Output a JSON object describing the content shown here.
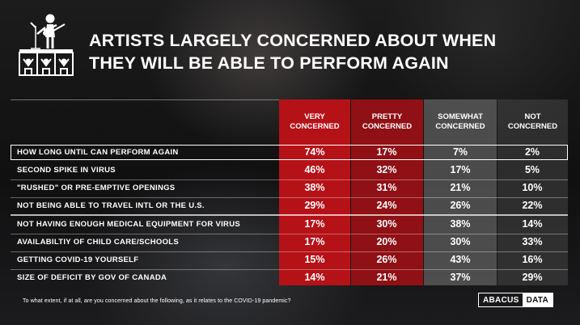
{
  "title": {
    "line1": "ARTISTS LARGELY CONCERNED ABOUT WHEN",
    "line2": "THEY WILL BE ABLE TO PERFORM AGAIN"
  },
  "colors": {
    "very_concerned": "#b51218",
    "pretty_concerned": "#8f1015",
    "somewhat_concerned": "#767676",
    "not_concerned": "#4e4e4e"
  },
  "icon": "performer-on-stage-icon",
  "chart_data": {
    "type": "table",
    "columns": [
      "VERY CONCERNED",
      "PRETTY CONCERNED",
      "SOMEWHAT CONCERNED",
      "NOT CONCERNED"
    ],
    "rows": [
      {
        "label": "HOW LONG UNTIL CAN PERFORM AGAIN",
        "values": [
          "74%",
          "17%",
          "7%",
          "2%"
        ]
      },
      {
        "label": "SECOND SPIKE IN VIRUS",
        "values": [
          "46%",
          "32%",
          "17%",
          "5%"
        ]
      },
      {
        "label": "\"RUSHED\" OR PRE-EMPTIVE OPENINGS",
        "values": [
          "38%",
          "31%",
          "21%",
          "10%"
        ]
      },
      {
        "label": "NOT BEING ABLE TO TRAVEL INTL OR THE U.S.",
        "values": [
          "29%",
          "24%",
          "26%",
          "22%"
        ]
      },
      {
        "label": "NOT HAVING ENOUGH MEDICAL EQUIPMENT FOR VIRUS",
        "values": [
          "17%",
          "30%",
          "38%",
          "14%"
        ]
      },
      {
        "label": "AVAILABILTIY OF CHILD CARE/SCHOOLS",
        "values": [
          "17%",
          "20%",
          "30%",
          "33%"
        ]
      },
      {
        "label": "GETTING COVID-19 YOURSELF",
        "values": [
          "15%",
          "26%",
          "43%",
          "16%"
        ]
      },
      {
        "label": "SIZE OF DEFICIT BY GOV OF CANADA",
        "values": [
          "14%",
          "21%",
          "37%",
          "29%"
        ]
      }
    ]
  },
  "footnote": "To what extent, if at all, are you concerned about the following, as it relates to the COVID-19 pandemic?",
  "brand": {
    "part1": "ABACUS",
    "part2": "DATA"
  }
}
